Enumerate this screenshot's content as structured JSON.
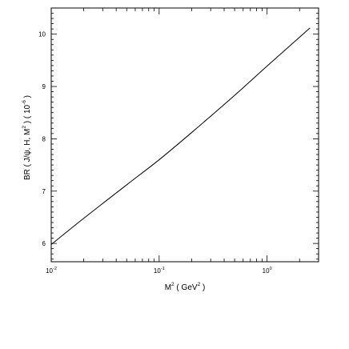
{
  "chart_data": {
    "type": "line",
    "title": "",
    "x_scale": "log",
    "xlim": [
      0.01,
      3.0
    ],
    "ylim": [
      5.65,
      10.5
    ],
    "grid": false,
    "xlabel": {
      "parts": [
        {
          "t": "M",
          "sup": false
        },
        {
          "t": "2",
          "sup": true
        },
        {
          "t": " ( GeV",
          "sup": false
        },
        {
          "t": "2",
          "sup": true
        },
        {
          "t": " )",
          "sup": false
        }
      ]
    },
    "ylabel": {
      "parts": [
        {
          "t": "BR ( J/ψ, H, M",
          "sup": false
        },
        {
          "t": "2",
          "sup": true
        },
        {
          "t": " )  ( 10",
          "sup": false
        },
        {
          "t": "-6",
          "sup": true
        },
        {
          "t": " )",
          "sup": false
        }
      ]
    },
    "x_ticks": [
      {
        "value": 0.01,
        "base": "10",
        "exp": "-2"
      },
      {
        "value": 0.1,
        "base": "10",
        "exp": "-1"
      },
      {
        "value": 1,
        "base": "10",
        "exp": "0"
      }
    ],
    "y_ticks": [
      {
        "value": 6,
        "label": "6"
      },
      {
        "value": 7,
        "label": "7"
      },
      {
        "value": 8,
        "label": "8"
      },
      {
        "value": 9,
        "label": "9"
      },
      {
        "value": 10,
        "label": "10"
      }
    ],
    "series": [
      {
        "x": [
          0.01,
          0.02,
          0.05,
          0.1,
          0.2,
          0.5,
          1.0,
          2.5
        ],
        "y": [
          5.98,
          6.48,
          7.12,
          7.6,
          8.12,
          8.83,
          9.39,
          10.12
        ]
      }
    ]
  }
}
